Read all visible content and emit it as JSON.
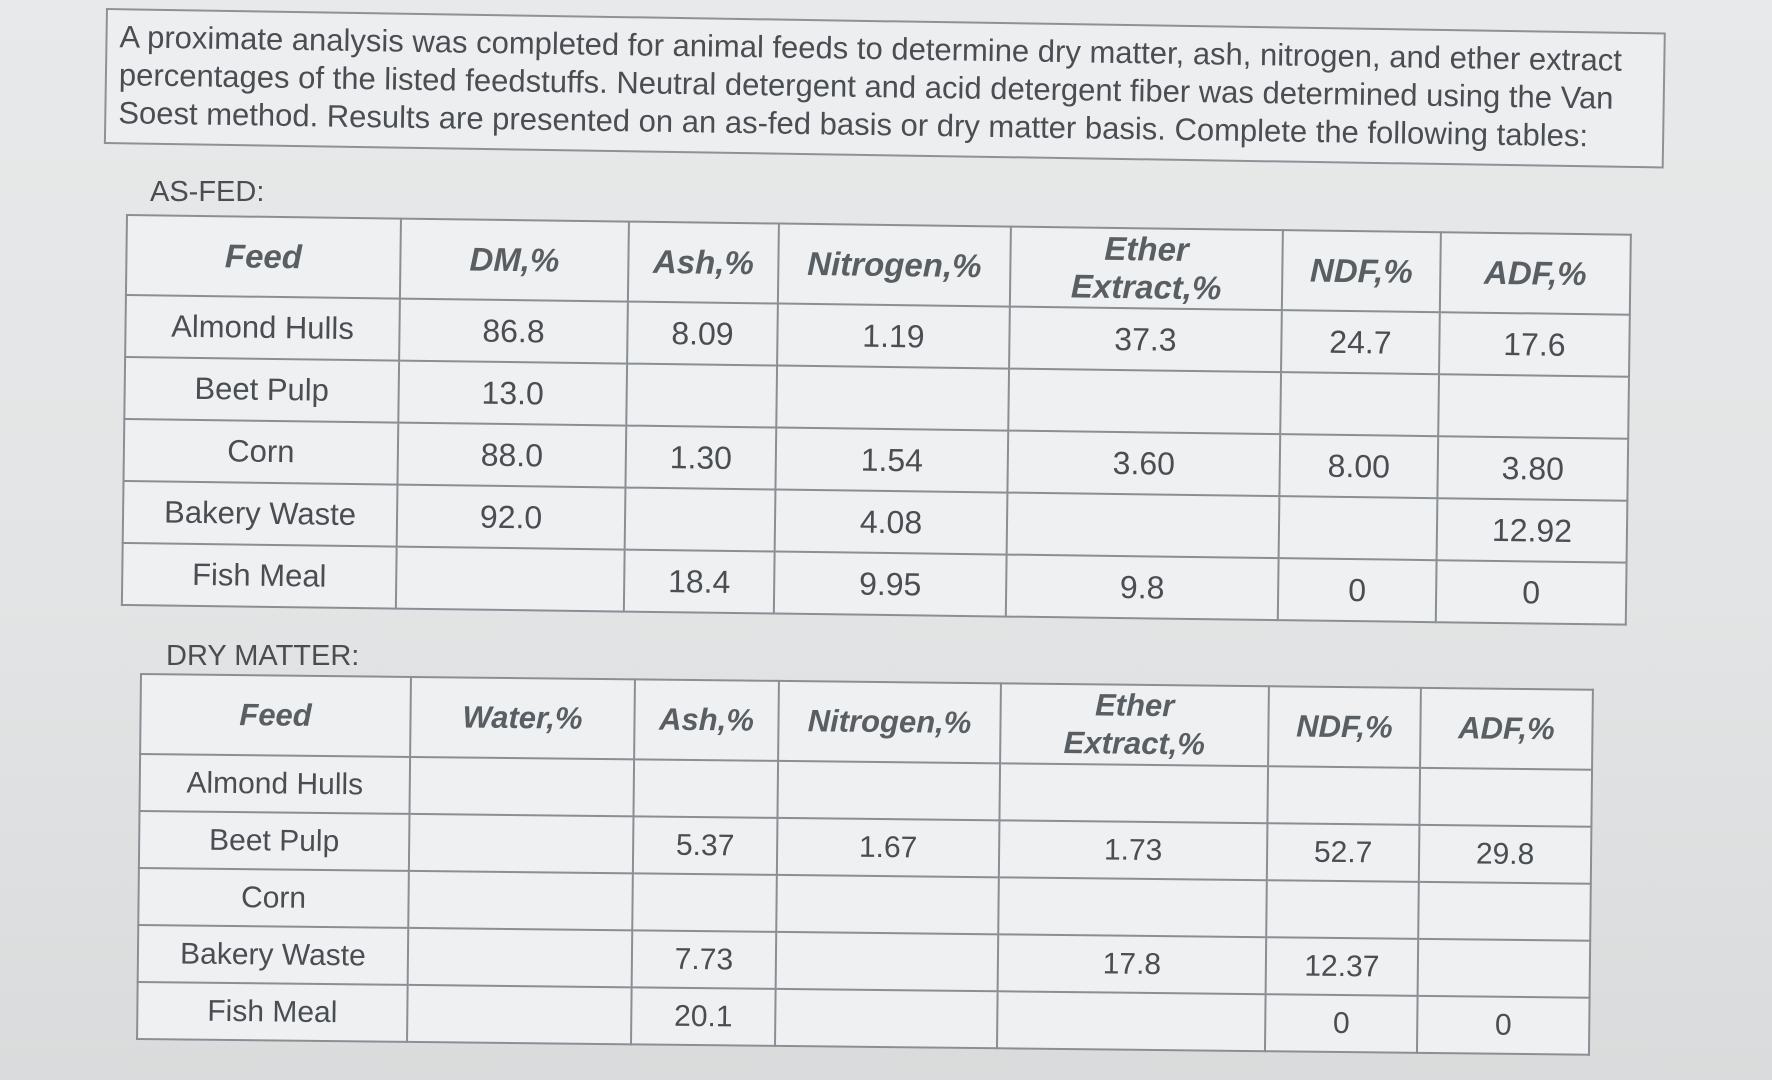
{
  "intro": {
    "line1": "A proximate analysis was completed for animal feeds to determine dry matter, ash, nitrogen, and ether extract",
    "line2": "percentages of the listed feedstuffs.  Neutral detergent and acid detergent fiber was determined using the Van",
    "line3": "Soest method.  Results are presented on an as-fed basis or dry matter basis.  Complete the following tables:"
  },
  "as_fed": {
    "label": "AS-FED:",
    "headers": {
      "feed": "Feed",
      "dm": "DM,%",
      "ash": "Ash,%",
      "nitrogen": "Nitrogen,%",
      "ether_line1": "Ether",
      "ether_line2": "Extract,%",
      "ndf": "NDF,%",
      "adf": "ADF,%"
    },
    "rows": [
      {
        "feed": "Almond Hulls",
        "dm": "86.8",
        "ash": "8.09",
        "nitrogen": "1.19",
        "ether": "37.3",
        "ndf": "24.7",
        "adf": "17.6"
      },
      {
        "feed": "Beet Pulp",
        "dm": "13.0",
        "ash": "",
        "nitrogen": "",
        "ether": "",
        "ndf": "",
        "adf": ""
      },
      {
        "feed": "Corn",
        "dm": "88.0",
        "ash": "1.30",
        "nitrogen": "1.54",
        "ether": "3.60",
        "ndf": "8.00",
        "adf": "3.80"
      },
      {
        "feed": "Bakery Waste",
        "dm": "92.0",
        "ash": "",
        "nitrogen": "4.08",
        "ether": "",
        "ndf": "",
        "adf": "12.92"
      },
      {
        "feed": "Fish Meal",
        "dm": "",
        "ash": "18.4",
        "nitrogen": "9.95",
        "ether": "9.8",
        "ndf": "0",
        "adf": "0"
      }
    ]
  },
  "dry_matter": {
    "label": "DRY MATTER:",
    "headers": {
      "feed": "Feed",
      "water": "Water,%",
      "ash": "Ash,%",
      "nitrogen": "Nitrogen,%",
      "ether_line1": "Ether",
      "ether_line2": "Extract,%",
      "ndf": "NDF,%",
      "adf": "ADF,%"
    },
    "rows": [
      {
        "feed": "Almond Hulls",
        "water": "",
        "ash": "",
        "nitrogen": "",
        "ether": "",
        "ndf": "",
        "adf": ""
      },
      {
        "feed": "Beet Pulp",
        "water": "",
        "ash": "5.37",
        "nitrogen": "1.67",
        "ether": "1.73",
        "ndf": "52.7",
        "adf": "29.8"
      },
      {
        "feed": "Corn",
        "water": "",
        "ash": "",
        "nitrogen": "",
        "ether": "",
        "ndf": "",
        "adf": ""
      },
      {
        "feed": "Bakery Waste",
        "water": "",
        "ash": "7.73",
        "nitrogen": "",
        "ether": "17.8",
        "ndf": "12.37",
        "adf": ""
      },
      {
        "feed": "Fish Meal",
        "water": "",
        "ash": "20.1",
        "nitrogen": "",
        "ether": "",
        "ndf": "0",
        "adf": "0"
      }
    ]
  }
}
